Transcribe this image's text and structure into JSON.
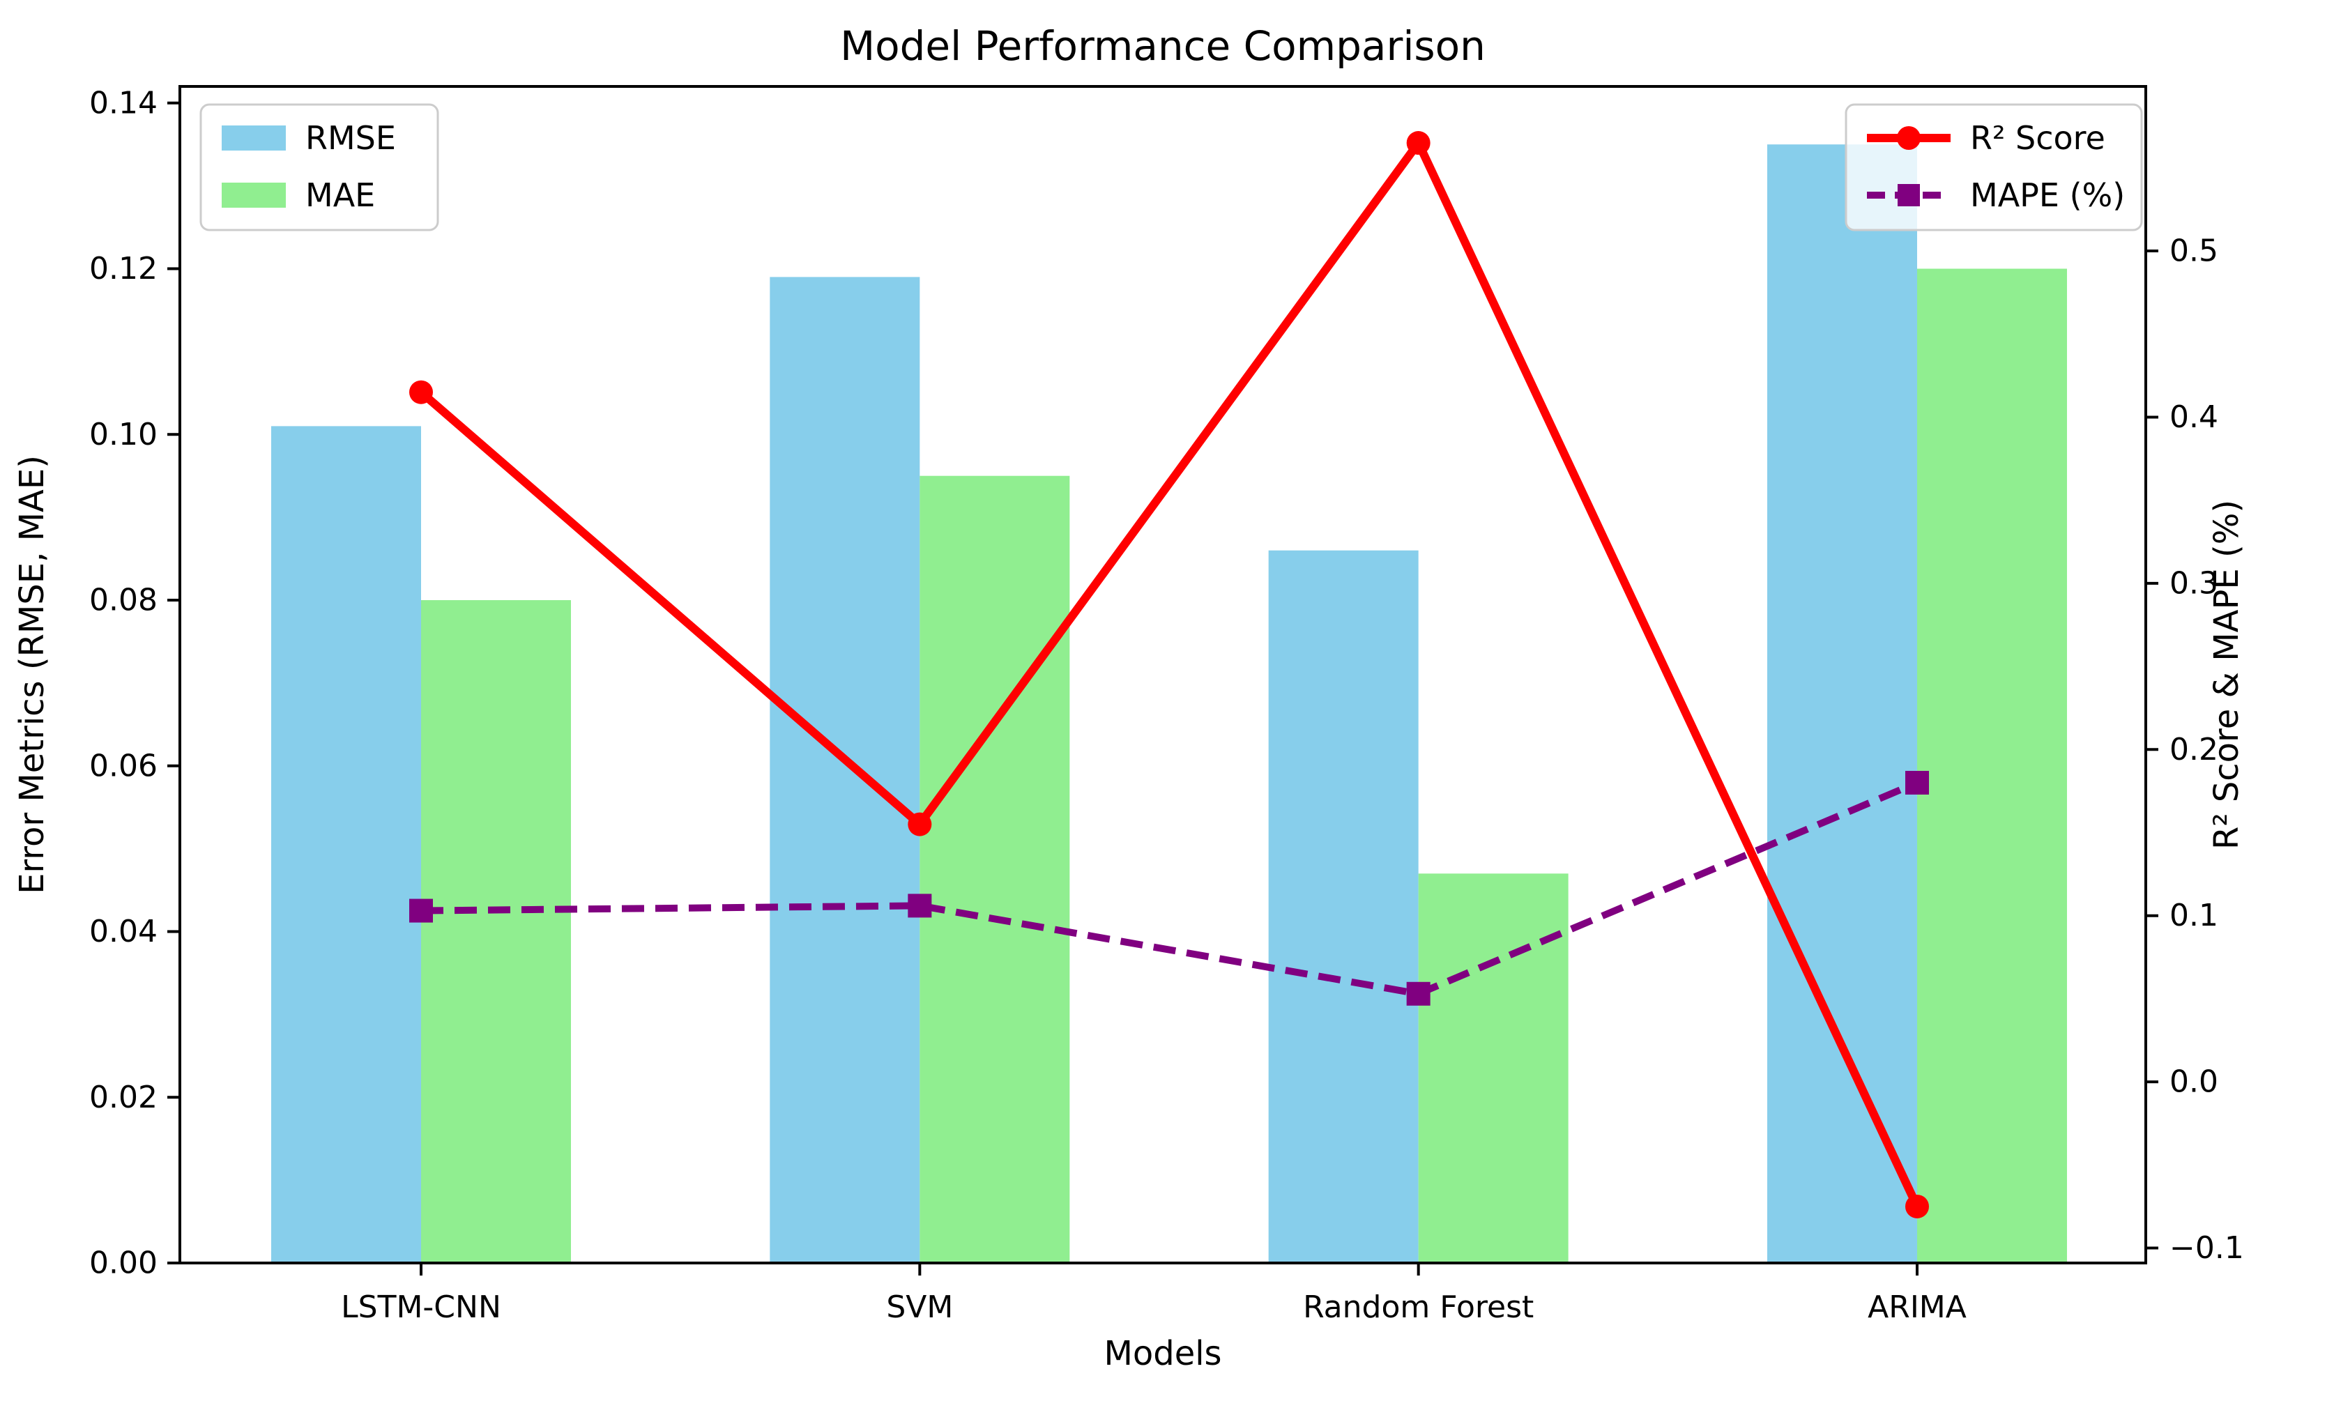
{
  "chart_data": {
    "type": "bar+line dual-axis",
    "title": "Model Performance Comparison",
    "xlabel": "Models",
    "ylabel_left": "Error Metrics (RMSE, MAE)",
    "ylabel_right": "R² Score & MAPE (%)",
    "categories": [
      "LSTM-CNN",
      "SVM",
      "Random Forest",
      "ARIMA"
    ],
    "series": [
      {
        "name": "RMSE",
        "type": "bar",
        "axis": "left",
        "color": "#87CEEB",
        "values": [
          0.101,
          0.119,
          0.086,
          0.135
        ]
      },
      {
        "name": "MAE",
        "type": "bar",
        "axis": "left",
        "color": "#90EE90",
        "values": [
          0.08,
          0.095,
          0.047,
          0.12
        ]
      },
      {
        "name": "R² Score",
        "type": "line",
        "axis": "right",
        "color": "#FF0000",
        "linestyle": "solid",
        "marker": "circle",
        "values": [
          0.415,
          0.155,
          0.565,
          -0.075
        ]
      },
      {
        "name": "MAPE (%)",
        "type": "line",
        "axis": "right",
        "color": "#800080",
        "linestyle": "dashed",
        "marker": "square",
        "values": [
          0.103,
          0.106,
          0.053,
          0.18
        ]
      }
    ],
    "axes": {
      "left": {
        "tick_labels": [
          "0.00",
          "0.02",
          "0.04",
          "0.06",
          "0.08",
          "0.10",
          "0.12",
          "0.14"
        ],
        "tick_values": [
          0.0,
          0.02,
          0.04,
          0.06,
          0.08,
          0.1,
          0.12,
          0.14
        ],
        "lim": [
          0,
          0.142
        ]
      },
      "right": {
        "tick_labels": [
          "−0.1",
          "0.0",
          "0.1",
          "0.2",
          "0.3",
          "0.4",
          "0.5"
        ],
        "tick_values": [
          -0.1,
          0.0,
          0.1,
          0.2,
          0.3,
          0.4,
          0.5
        ],
        "lim": [
          -0.109,
          0.599
        ]
      }
    },
    "legend_bars": {
      "entries": [
        "RMSE",
        "MAE"
      ],
      "position": "upper-left"
    },
    "legend_lines": {
      "entries": [
        "R² Score",
        "MAPE (%)"
      ],
      "position": "upper-right"
    },
    "grid": false,
    "colors": {
      "rmse_bar": "#87CEEB",
      "mae_bar": "#90EE90",
      "r2_line": "#FF0000",
      "mape_line": "#800080",
      "spine": "#000000",
      "legend_border": "#cccccc",
      "background": "#FFFFFF"
    }
  }
}
